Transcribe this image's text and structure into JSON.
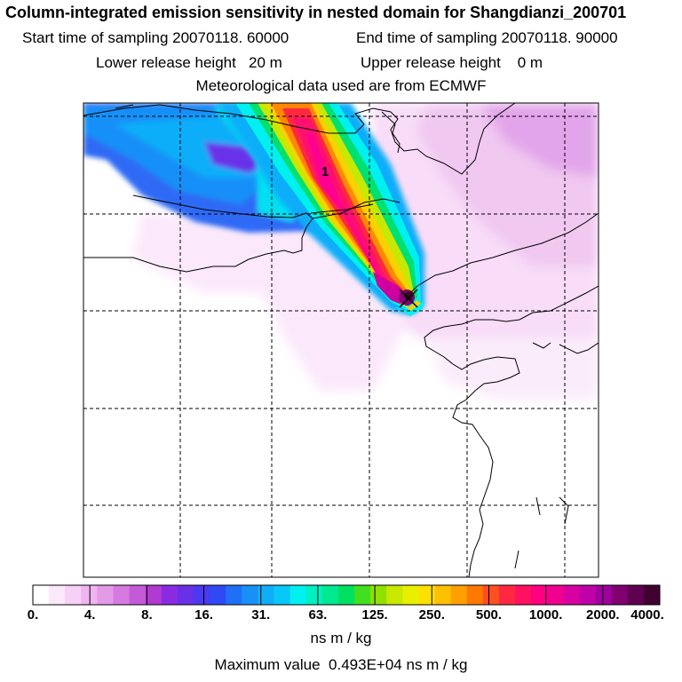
{
  "header": {
    "title": "Column-integrated emission sensitivity in nested domain for Shangdianzi_200701",
    "start_label": "Start time of sampling",
    "start_value": "20070118. 60000",
    "end_label": "End time of sampling",
    "end_value": "20070118. 90000",
    "lower_label": "Lower release height",
    "lower_value": "20 m",
    "upper_label": "Upper release height",
    "upper_value": "0 m",
    "met_text": "Meteorological data used are from ECMWF"
  },
  "map": {
    "marker_label": "1",
    "release_marker": "x-marker-icon"
  },
  "colorbar": {
    "tick_labels": [
      "0.",
      "4.",
      "8.",
      "16.",
      "31.",
      "63.",
      "125.",
      "250.",
      "500.",
      "1000.",
      "2000.",
      "4000."
    ],
    "colors": [
      "#ffffff",
      "#fbe8fb",
      "#f6d0f6",
      "#f0b4f0",
      "#e59ae8",
      "#d77ae0",
      "#c55ad8",
      "#b03ad2",
      "#8a2be2",
      "#6a30e8",
      "#4a3af0",
      "#2f49f5",
      "#1f6ff7",
      "#1890f8",
      "#10aef9",
      "#08c8fa",
      "#00f0f0",
      "#00f0c0",
      "#00e890",
      "#00e060",
      "#40e020",
      "#90e000",
      "#c8e800",
      "#e8f000",
      "#ffe000",
      "#ffc000",
      "#ffa000",
      "#ff7800",
      "#ff5020",
      "#ff2840",
      "#ff1060",
      "#ff0080",
      "#f00090",
      "#d800a0",
      "#c000a8",
      "#a000a0",
      "#800070",
      "#600050",
      "#400030"
    ],
    "units": "ns m / kg"
  },
  "footer": {
    "max_label": "Maximum value",
    "max_value": "0.493E+04",
    "max_units": "ns m / kg"
  }
}
